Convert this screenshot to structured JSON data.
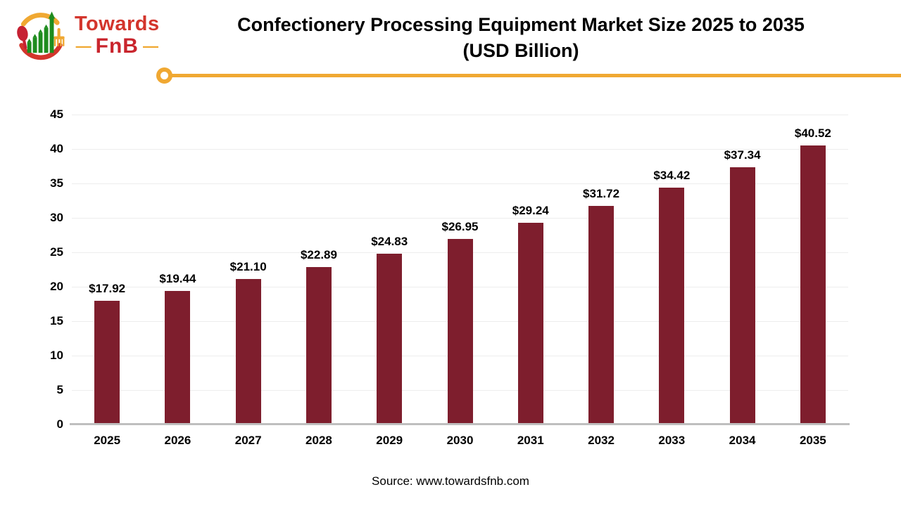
{
  "logo": {
    "brand_line1": "Towards",
    "name": "FnB",
    "dash_left": "—",
    "dash_right": "—"
  },
  "header": {
    "title_line1": "Confectionery Processing Equipment Market Size 2025 to 2035",
    "title_line2": "(USD Billion)"
  },
  "footer": {
    "source": "Source: www.towardsfnb.com"
  },
  "colors": {
    "bar": "#7e1e2d",
    "accent_yellow": "#f0a832",
    "gridline": "#ededed",
    "axis_line": "#bfbfbf",
    "logo_red": "#d3352c",
    "logo_dark_red": "#c9252d",
    "logo_green": "#1e8c1e"
  },
  "chart_data": {
    "type": "bar",
    "title": "Confectionery Processing Equipment Market Size 2025 to 2035 (USD Billion)",
    "categories": [
      "2025",
      "2026",
      "2027",
      "2028",
      "2029",
      "2030",
      "2031",
      "2032",
      "2033",
      "2034",
      "2035"
    ],
    "values": [
      17.92,
      19.44,
      21.1,
      22.89,
      24.83,
      26.95,
      29.24,
      31.72,
      34.42,
      37.34,
      40.52
    ],
    "bar_labels": [
      "$17.92",
      "$19.44",
      "$21.10",
      "$22.89",
      "$24.83",
      "$26.95",
      "$29.24",
      "$31.72",
      "$34.42",
      "$37.34",
      "$40.52"
    ],
    "xlabel": "",
    "ylabel": "",
    "ylim": [
      0,
      45
    ],
    "yticks": [
      0,
      5,
      10,
      15,
      20,
      25,
      30,
      35,
      40,
      45
    ],
    "grid": "horizontal",
    "legend": "none",
    "bar_color": "#7e1e2d"
  }
}
